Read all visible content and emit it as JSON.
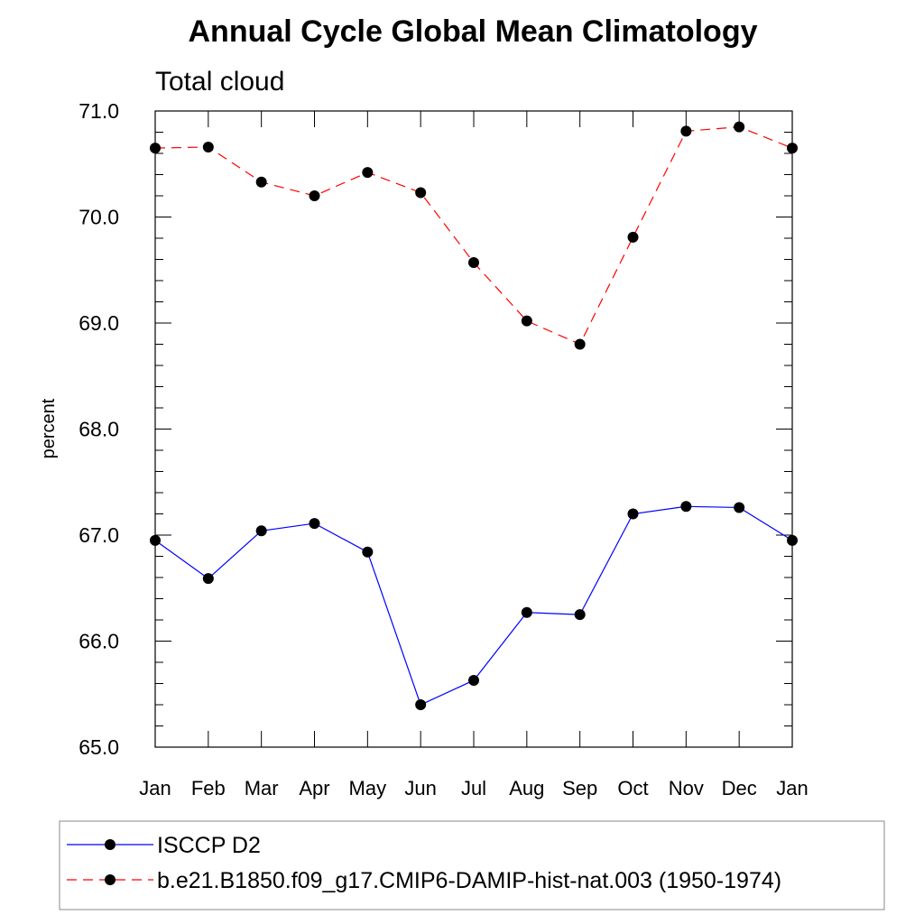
{
  "chart_data": {
    "type": "line",
    "title": "Annual Cycle Global Mean Climatology",
    "subtitle": "Total cloud",
    "xlabel": "",
    "ylabel": "percent",
    "categories": [
      "Jan",
      "Feb",
      "Mar",
      "Apr",
      "May",
      "Jun",
      "Jul",
      "Aug",
      "Sep",
      "Oct",
      "Nov",
      "Dec",
      "Jan"
    ],
    "ylim": [
      65.0,
      71.0
    ],
    "yticks": [
      "65.0",
      "66.0",
      "67.0",
      "68.0",
      "69.0",
      "70.0",
      "71.0"
    ],
    "grid": false,
    "legend_position": "bottom",
    "series": [
      {
        "name": "ISCCP D2",
        "color": "#0000ff",
        "line_style": "solid",
        "marker": "filled-circle",
        "values": [
          66.95,
          66.59,
          67.04,
          67.11,
          66.84,
          65.4,
          65.63,
          66.27,
          66.25,
          67.2,
          67.27,
          67.26,
          66.95
        ]
      },
      {
        "name": "b.e21.B1850.f09_g17.CMIP6-DAMIP-hist-nat.003 (1950-1974)",
        "color": "#ff0000",
        "line_style": "dashed",
        "marker": "filled-circle",
        "values": [
          70.65,
          70.66,
          70.33,
          70.2,
          70.42,
          70.23,
          69.57,
          69.02,
          68.8,
          69.81,
          70.81,
          70.85,
          70.65
        ]
      }
    ]
  }
}
